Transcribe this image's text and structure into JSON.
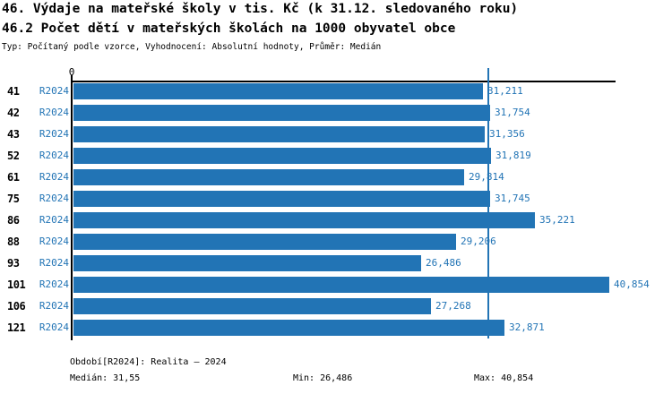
{
  "title": {
    "line1": "46. Výdaje na mateřské školy v tis. Kč (k 31.12. sledovaného roku)",
    "line2": "46.2 Počet dětí v mateřských školách na 1000 obyvatel obce",
    "subtitle": "Typ: Počítaný podle vzorce, Vyhodnocení: Absolutní hodnoty, Průměr: Medián"
  },
  "chart_data": {
    "type": "bar",
    "orientation": "horizontal",
    "title": "46. Výdaje na mateřské školy v tis. Kč (k 31.12. sledovaného roku)",
    "subtitle": "46.2 Počet dětí v mateřských školách na 1000 obyvatel obce",
    "series_label": "R2024",
    "categories": [
      "41",
      "42",
      "43",
      "52",
      "61",
      "75",
      "86",
      "88",
      "93",
      "101",
      "106",
      "121"
    ],
    "values": [
      31.211,
      31.754,
      31.356,
      31.819,
      29.814,
      31.745,
      35.221,
      29.206,
      26.486,
      40.854,
      27.268,
      32.871
    ],
    "value_labels": [
      "31,211",
      "31,754",
      "31,356",
      "31,819",
      "29,814",
      "31,745",
      "35,221",
      "29,206",
      "26,486",
      "40,854",
      "27,268",
      "32,871"
    ],
    "median_value": 31.55,
    "x_axis": {
      "tick_labels": [
        "0"
      ],
      "xlim": [
        0,
        41.34
      ],
      "grid": false
    },
    "legend_position": "none",
    "colors": {
      "bar": "#2274B5",
      "value_text": "#2274B5",
      "series_text": "#2274B5",
      "median_line": "#2274B5",
      "axis": "#000000",
      "category_text": "#000000"
    }
  },
  "footer": {
    "period": "Období[R2024]: Realita – 2024",
    "median": "Medián: 31,55",
    "min": "Min: 26,486",
    "max": "Max: 40,854"
  }
}
